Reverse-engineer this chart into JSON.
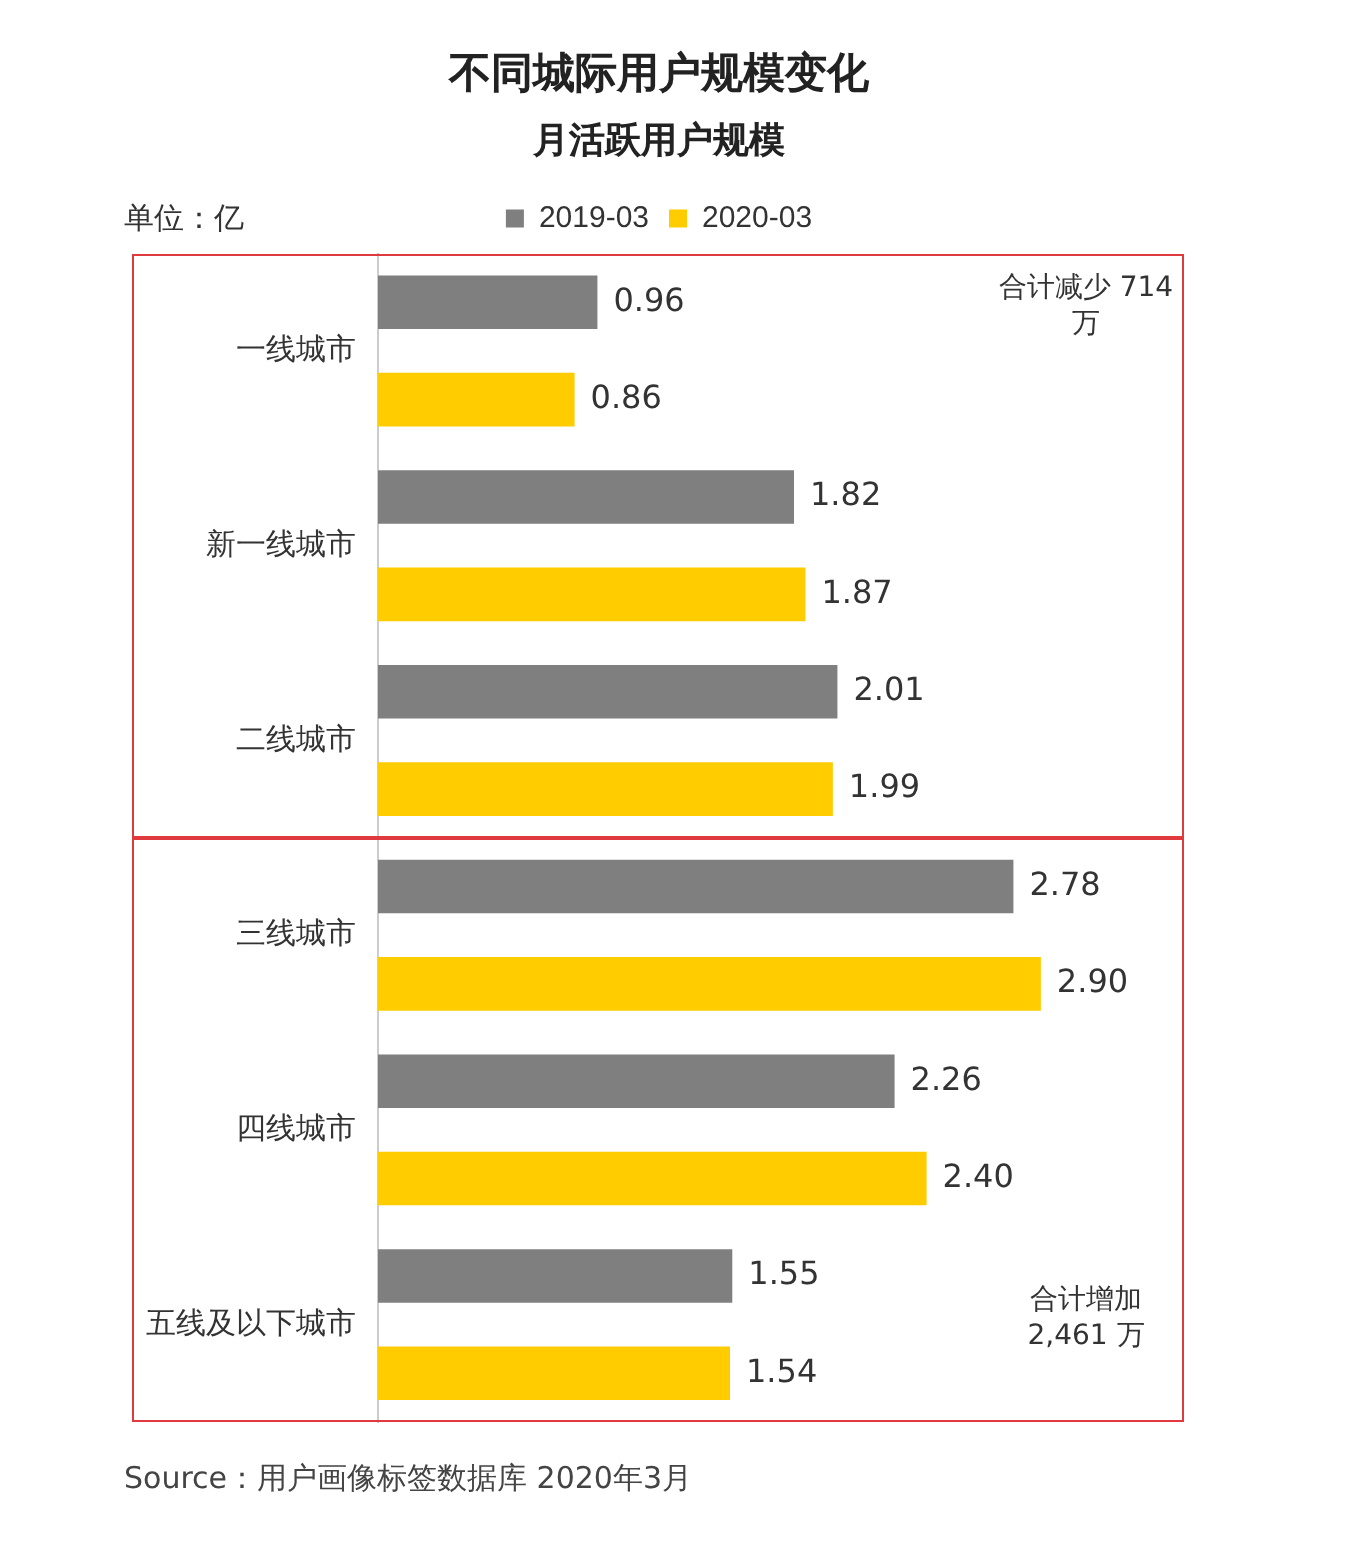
{
  "chart_data": {
    "type": "bar",
    "orientation": "horizontal",
    "title": "不同城际用户规模变化",
    "subtitle": "月活跃用户规模",
    "categories": [
      "一线城市",
      "新一线城市",
      "二线城市",
      "三线城市",
      "四线城市",
      "五线及以下城市"
    ],
    "series": [
      {
        "name": "2019-03",
        "color": "#7f7f7f",
        "values": [
          0.96,
          1.82,
          2.01,
          2.78,
          2.26,
          1.55
        ],
        "value_labels": [
          "0.96",
          "1.82",
          "2.01",
          "2.78",
          "2.26",
          "1.55"
        ]
      },
      {
        "name": "2020-03",
        "color": "#ffcc00",
        "values": [
          0.86,
          1.87,
          1.99,
          2.9,
          2.4,
          1.54
        ],
        "value_labels": [
          "0.86",
          "1.87",
          "1.99",
          "2.90",
          "2.40",
          "1.54"
        ]
      }
    ],
    "grid": false,
    "legend": "top",
    "tick_labels": "y",
    "annotations": [
      "单位：亿",
      "合计减少 714 万",
      "合计增加 2,461 万",
      "Source：用户画像标签数据库 2020年3月"
    ]
  }
}
